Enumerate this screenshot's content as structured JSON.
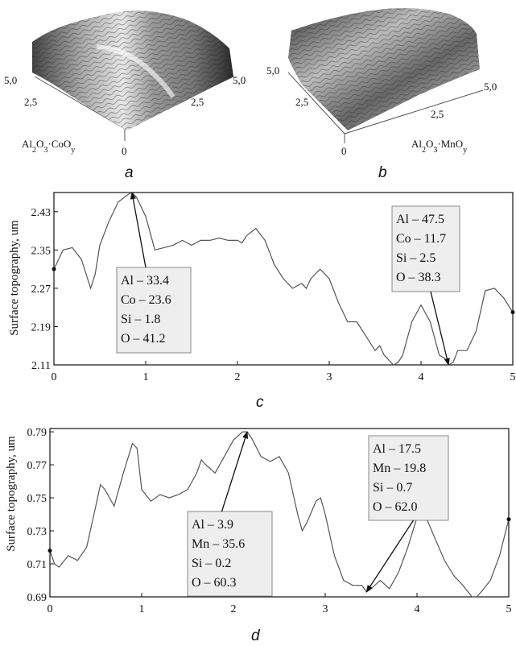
{
  "chart_data": [
    {
      "id": "a",
      "type": "surface",
      "panel_label": "a",
      "material_label": "Al2O3·CoOy",
      "axis_ticks_left": [
        "5,0",
        "2,5"
      ],
      "axis_ticks_right": [
        "5,0",
        "2,5"
      ],
      "origin_tick": "0"
    },
    {
      "id": "b",
      "type": "surface",
      "panel_label": "b",
      "material_label": "Al2O3·MnOy",
      "axis_ticks_left": [
        "5,0",
        "2,5"
      ],
      "axis_ticks_right": [
        "5,0",
        "2,5"
      ],
      "origin_tick": "0"
    },
    {
      "id": "c",
      "type": "line",
      "panel_label": "c",
      "ylabel": "Surface topography, um",
      "xlim": [
        0,
        5
      ],
      "ylim": [
        2.11,
        2.47
      ],
      "xticks": [
        "0",
        "1",
        "2",
        "3",
        "4",
        "5"
      ],
      "yticks": [
        "2.11",
        "2.19",
        "2.27",
        "2.35",
        "2.43"
      ],
      "x": [
        0,
        0.05,
        0.1,
        0.2,
        0.3,
        0.35,
        0.4,
        0.45,
        0.5,
        0.6,
        0.7,
        0.8,
        0.85,
        0.9,
        1.0,
        1.1,
        1.2,
        1.3,
        1.4,
        1.5,
        1.6,
        1.7,
        1.8,
        1.9,
        2.0,
        2.05,
        2.1,
        2.2,
        2.3,
        2.4,
        2.5,
        2.6,
        2.7,
        2.75,
        2.8,
        2.9,
        3.0,
        3.1,
        3.2,
        3.3,
        3.4,
        3.5,
        3.55,
        3.6,
        3.7,
        3.75,
        3.8,
        3.9,
        4.0,
        4.1,
        4.2,
        4.25,
        4.3,
        4.35,
        4.4,
        4.5,
        4.6,
        4.7,
        4.8,
        4.9,
        5.0
      ],
      "y": [
        2.31,
        2.33,
        2.35,
        2.355,
        2.33,
        2.3,
        2.27,
        2.3,
        2.36,
        2.41,
        2.45,
        2.465,
        2.47,
        2.46,
        2.42,
        2.35,
        2.355,
        2.36,
        2.37,
        2.36,
        2.37,
        2.37,
        2.375,
        2.37,
        2.37,
        2.365,
        2.38,
        2.395,
        2.37,
        2.32,
        2.29,
        2.27,
        2.28,
        2.27,
        2.29,
        2.31,
        2.29,
        2.24,
        2.2,
        2.2,
        2.17,
        2.14,
        2.15,
        2.13,
        2.11,
        2.115,
        2.13,
        2.2,
        2.235,
        2.2,
        2.13,
        2.125,
        2.11,
        2.115,
        2.14,
        2.14,
        2.18,
        2.265,
        2.27,
        2.25,
        2.22
      ],
      "annotations": [
        {
          "lines": [
            "Al – 33.4",
            "Co – 23.6",
            "Si – 1.8",
            "O – 41.2"
          ],
          "x": 0.85,
          "y": 2.47
        },
        {
          "lines": [
            "Al – 47.5",
            "Co – 11.7",
            "Si – 2.5",
            "O – 38.3"
          ],
          "x": 4.3,
          "y": 2.11
        }
      ]
    },
    {
      "id": "d",
      "type": "line",
      "panel_label": "d",
      "ylabel": "Surface topography, um",
      "xlim": [
        0,
        5
      ],
      "ylim": [
        0.69,
        0.792
      ],
      "xticks": [
        "0",
        "1",
        "2",
        "3",
        "4",
        "5"
      ],
      "yticks": [
        "0.69",
        "0.71",
        "0.73",
        "0.75",
        "0.77",
        "0.79"
      ],
      "x": [
        0,
        0.05,
        0.1,
        0.2,
        0.3,
        0.4,
        0.5,
        0.55,
        0.6,
        0.7,
        0.8,
        0.9,
        0.95,
        1.0,
        1.1,
        1.2,
        1.3,
        1.4,
        1.5,
        1.6,
        1.65,
        1.7,
        1.8,
        1.9,
        2.0,
        2.1,
        2.15,
        2.2,
        2.3,
        2.4,
        2.5,
        2.6,
        2.7,
        2.75,
        2.8,
        2.9,
        2.95,
        3.0,
        3.1,
        3.2,
        3.3,
        3.4,
        3.45,
        3.5,
        3.6,
        3.7,
        3.8,
        3.9,
        4.0,
        4.05,
        4.1,
        4.2,
        4.3,
        4.4,
        4.5,
        4.6,
        4.65,
        4.7,
        4.8,
        4.9,
        5.0
      ],
      "y": [
        0.718,
        0.71,
        0.708,
        0.715,
        0.712,
        0.72,
        0.745,
        0.758,
        0.755,
        0.745,
        0.765,
        0.783,
        0.78,
        0.755,
        0.748,
        0.752,
        0.75,
        0.752,
        0.755,
        0.765,
        0.773,
        0.77,
        0.765,
        0.775,
        0.785,
        0.79,
        0.79,
        0.786,
        0.775,
        0.772,
        0.775,
        0.765,
        0.74,
        0.73,
        0.735,
        0.748,
        0.75,
        0.74,
        0.715,
        0.7,
        0.697,
        0.697,
        0.693,
        0.695,
        0.7,
        0.695,
        0.705,
        0.72,
        0.738,
        0.74,
        0.738,
        0.725,
        0.712,
        0.703,
        0.697,
        0.69,
        0.69,
        0.693,
        0.7,
        0.715,
        0.737
      ],
      "annotations": [
        {
          "lines": [
            "Al – 3.9",
            "Mn – 35.6",
            "Si – 0.2",
            "O – 60.3"
          ],
          "x": 2.15,
          "y": 0.79
        },
        {
          "lines": [
            "Al – 17.5",
            "Mn – 19.8",
            "Si – 0.7",
            "O – 62.0"
          ],
          "x": 3.45,
          "y": 0.693
        }
      ]
    }
  ]
}
